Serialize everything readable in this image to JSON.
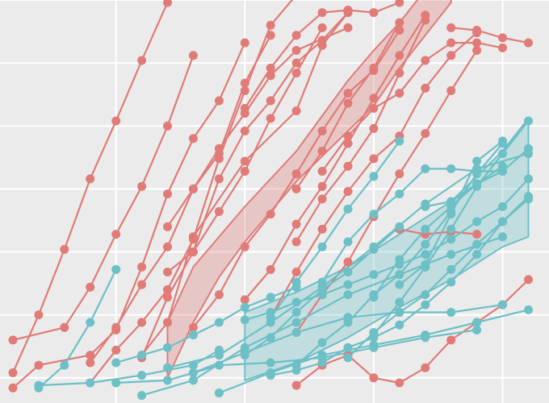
{
  "chart_data": {
    "type": "line",
    "grid": true,
    "legend": "none",
    "xlim": [
      0.5,
      21.8
    ],
    "ylim": [
      0,
      16
    ],
    "x_gridlines": [
      5,
      10,
      15,
      20
    ],
    "y_gridlines": [
      1,
      3.5,
      6,
      8.5,
      11,
      13.5,
      16
    ],
    "colors": {
      "red": "#e07b78",
      "teal": "#6cc0c6",
      "panel": "#ebebeb",
      "grid": "#ffffff"
    },
    "series": [
      {
        "group": "red",
        "x": [
          1,
          2,
          3,
          4,
          5,
          6,
          7
        ],
        "y": [
          1.2,
          3.5,
          6.1,
          8.9,
          11.2,
          13.6,
          15.9
        ]
      },
      {
        "group": "red",
        "x": [
          1,
          3,
          4,
          5,
          6,
          7,
          8
        ],
        "y": [
          2.5,
          3.0,
          4.6,
          6.7,
          8.6,
          11.0,
          13.8
        ]
      },
      {
        "group": "red",
        "x": [
          1,
          2,
          4,
          5,
          6,
          7,
          8,
          9,
          10
        ],
        "y": [
          0.6,
          1.5,
          1.9,
          2.9,
          5.4,
          8.3,
          10.5,
          12.0,
          14.3
        ]
      },
      {
        "group": "red",
        "x": [
          4,
          5,
          6,
          7,
          8,
          9,
          10,
          11
        ],
        "y": [
          1.6,
          3.0,
          4.7,
          6.2,
          8.5,
          9.9,
          12.7,
          14.6
        ]
      },
      {
        "group": "red",
        "x": [
          4,
          5,
          6,
          7,
          8,
          9,
          10,
          11,
          12
        ],
        "y": [
          0.8,
          2.1,
          3.2,
          4.5,
          6.5,
          9.7,
          12.4,
          15.0,
          16.2
        ]
      },
      {
        "group": "red",
        "x": [
          6,
          7,
          8,
          9,
          10,
          11,
          12,
          13
        ],
        "y": [
          1.8,
          4.2,
          6.0,
          7.6,
          9.2,
          11.3,
          13.1,
          14.9
        ]
      },
      {
        "group": "red",
        "x": [
          6,
          7,
          8,
          10,
          12,
          13,
          14
        ],
        "y": [
          1.9,
          3.2,
          6.6,
          9.6,
          11.6,
          14.2,
          15.5
        ]
      },
      {
        "group": "red",
        "x": [
          7,
          8,
          9,
          10,
          11,
          12,
          13,
          14
        ],
        "y": [
          5.2,
          6.0,
          8.9,
          10.8,
          12.0,
          13.5,
          14.4,
          15.5
        ]
      },
      {
        "group": "red",
        "x": [
          7,
          8,
          9,
          10,
          11,
          12,
          14
        ],
        "y": [
          7.0,
          8.5,
          10.1,
          11.5,
          13.0,
          14.0,
          14.9
        ]
      },
      {
        "group": "red",
        "x": [
          8,
          9,
          10,
          11,
          12,
          13,
          14,
          15,
          16
        ],
        "y": [
          3.0,
          4.3,
          6.2,
          7.5,
          9.1,
          10.8,
          12.3,
          13.2,
          14.8
        ]
      },
      {
        "group": "red",
        "x": [
          10,
          11,
          12,
          13,
          14,
          15,
          16,
          17
        ],
        "y": [
          4.1,
          5.3,
          7.1,
          8.6,
          10.3,
          12.1,
          13.8,
          15.4
        ]
      },
      {
        "group": "red",
        "x": [
          10,
          11,
          12,
          13,
          14,
          15,
          16
        ],
        "y": [
          11.7,
          13.3,
          14.6,
          15.5,
          15.6,
          15.5,
          15.9
        ]
      },
      {
        "group": "red",
        "x": [
          11,
          12,
          13,
          14,
          15,
          16,
          17,
          18,
          19
        ],
        "y": [
          3.4,
          5.2,
          6.9,
          8.4,
          9.7,
          10.6,
          12.5,
          13.8,
          14.7
        ]
      },
      {
        "group": "red",
        "x": [
          12,
          13,
          14,
          15,
          16,
          17,
          18,
          19
        ],
        "y": [
          2.8,
          4.3,
          5.6,
          7.4,
          9.1,
          10.7,
          12.4,
          14.0
        ]
      },
      {
        "group": "red",
        "x": [
          12,
          13,
          14,
          15,
          16,
          17
        ],
        "y": [
          6.4,
          8.1,
          9.4,
          10.9,
          13.1,
          15.2
        ]
      },
      {
        "group": "red",
        "x": [
          12,
          13,
          14,
          15,
          16
        ],
        "y": [
          8.5,
          10.0,
          11.9,
          13.3,
          15.1
        ]
      },
      {
        "group": "red",
        "x": [
          13,
          14,
          15,
          16,
          17,
          18,
          19,
          20
        ],
        "y": [
          9.2,
          10.6,
          11.7,
          12.3,
          13.6,
          14.3,
          14.3,
          14.1
        ]
      },
      {
        "group": "red",
        "x": [
          12,
          13,
          14,
          15,
          16,
          17,
          18,
          19,
          20,
          21
        ],
        "y": [
          0.7,
          1.5,
          1.9,
          1.0,
          0.8,
          1.4,
          2.5,
          3.2,
          3.9,
          4.9
        ]
      },
      {
        "group": "red",
        "x": [
          16,
          17,
          18,
          19
        ],
        "y": [
          6.9,
          6.7,
          6.8,
          6.7
        ]
      },
      {
        "group": "red",
        "x": [
          18,
          19,
          20,
          21
        ],
        "y": [
          14.9,
          14.8,
          14.5,
          14.3
        ]
      },
      {
        "group": "teal",
        "x": [
          2,
          3,
          4,
          5
        ],
        "y": [
          0.6,
          1.5,
          3.2,
          5.3
        ]
      },
      {
        "group": "teal",
        "x": [
          2,
          4,
          6,
          8,
          9
        ],
        "y": [
          0.7,
          0.8,
          1.1,
          1.5,
          2.1
        ]
      },
      {
        "group": "teal",
        "x": [
          5,
          6,
          7,
          8,
          9,
          10,
          11,
          12
        ],
        "y": [
          1.6,
          1.9,
          2.2,
          2.7,
          3.2,
          3.8,
          4.2,
          4.6
        ]
      },
      {
        "group": "teal",
        "x": [
          5,
          7,
          9,
          11,
          13,
          15,
          17,
          19
        ],
        "y": [
          0.8,
          0.9,
          1.5,
          1.6,
          1.8,
          2.2,
          2.6,
          2.9
        ]
      },
      {
        "group": "teal",
        "x": [
          6,
          8,
          10,
          12,
          14,
          16,
          18,
          20
        ],
        "y": [
          0.3,
          0.9,
          2.2,
          3.2,
          4.3,
          5.1,
          5.9,
          6.6
        ]
      },
      {
        "group": "teal",
        "x": [
          7,
          9,
          11,
          13,
          15,
          17,
          19,
          21
        ],
        "y": [
          1.4,
          1.9,
          3.2,
          4.6,
          6.2,
          7.9,
          9.3,
          9.9
        ]
      },
      {
        "group": "teal",
        "x": [
          8,
          10,
          12,
          14,
          16,
          18,
          20
        ],
        "y": [
          1.2,
          2.0,
          2.8,
          3.4,
          3.6,
          3.6,
          3.9
        ]
      },
      {
        "group": "teal",
        "x": [
          9,
          11,
          13,
          15,
          17,
          19,
          21
        ],
        "y": [
          0.4,
          1.2,
          1.9,
          2.3,
          2.7,
          3.2,
          3.7
        ]
      },
      {
        "group": "teal",
        "x": [
          10,
          11,
          12,
          13,
          14,
          15,
          16
        ],
        "y": [
          1.9,
          2.6,
          3.6,
          4.5,
          5.2,
          6.1,
          7.0
        ]
      },
      {
        "group": "teal",
        "x": [
          10,
          11,
          12,
          13,
          14,
          15,
          16,
          17,
          18,
          19,
          20,
          21
        ],
        "y": [
          3.3,
          3.6,
          4.0,
          4.3,
          4.7,
          5.1,
          5.5,
          5.9,
          6.5,
          7.2,
          7.8,
          8.9
        ]
      },
      {
        "group": "teal",
        "x": [
          11,
          12,
          13,
          14,
          15,
          16
        ],
        "y": [
          3.4,
          4.8,
          6.2,
          7.7,
          9.0,
          10.4
        ]
      },
      {
        "group": "teal",
        "x": [
          11,
          12,
          13,
          14,
          15,
          16,
          17,
          18,
          19,
          20,
          21
        ],
        "y": [
          1.1,
          1.3,
          1.6,
          2.2,
          2.6,
          3.1,
          3.9,
          4.8,
          5.9,
          7.2,
          8.2
        ]
      },
      {
        "group": "teal",
        "x": [
          12,
          13,
          14,
          15,
          16,
          17,
          18,
          19,
          20
        ],
        "y": [
          1.5,
          2.4,
          3.2,
          4.3,
          5.1,
          6.3,
          7.6,
          9.1,
          10.3
        ]
      },
      {
        "group": "teal",
        "x": [
          13,
          14,
          15,
          16,
          17,
          18,
          19,
          20
        ],
        "y": [
          4.8,
          6.4,
          7.5,
          8.3,
          9.3,
          9.3,
          9.2,
          9.2
        ]
      },
      {
        "group": "teal",
        "x": [
          14,
          15,
          16,
          17,
          18,
          19,
          20,
          21
        ],
        "y": [
          1.8,
          2.8,
          3.6,
          4.3,
          5.3,
          6.3,
          7.2,
          8.1
        ]
      },
      {
        "group": "teal",
        "x": [
          15,
          16,
          17,
          18,
          19,
          20,
          21
        ],
        "y": [
          2.7,
          4.0,
          5.4,
          6.9,
          8.6,
          9.9,
          11.2
        ]
      },
      {
        "group": "teal",
        "x": [
          15,
          16,
          17,
          18,
          19,
          20
        ],
        "y": [
          4.2,
          5.7,
          6.9,
          7.8,
          8.7,
          9.4
        ]
      },
      {
        "group": "teal",
        "x": [
          16,
          17,
          18,
          19,
          20
        ],
        "y": [
          4.7,
          5.5,
          7.5,
          9.6,
          10.4
        ]
      },
      {
        "group": "teal",
        "x": [
          17,
          18,
          19,
          20,
          21
        ],
        "y": [
          7.8,
          8.0,
          8.7,
          9.2,
          10.1
        ]
      }
    ],
    "ribbons": [
      {
        "group": "red",
        "x": [
          7,
          8,
          9,
          10,
          11,
          12,
          13,
          14,
          15,
          16,
          17,
          18
        ],
        "lower": [
          1.0,
          3.2,
          5.0,
          6.4,
          7.6,
          8.8,
          9.8,
          10.8,
          11.8,
          13.3,
          14.6,
          15.9
        ],
        "upper": [
          3.2,
          5.4,
          6.6,
          7.8,
          8.9,
          10.0,
          11.4,
          12.8,
          14.0,
          15.1,
          16.4,
          17.6
        ]
      },
      {
        "group": "teal",
        "x": [
          10,
          12,
          14,
          16,
          18,
          20,
          21
        ],
        "lower": [
          0.9,
          1.6,
          2.6,
          3.8,
          4.9,
          6.2,
          6.6
        ],
        "upper": [
          3.6,
          4.4,
          5.4,
          6.7,
          8.0,
          10.0,
          11.3
        ]
      }
    ]
  }
}
